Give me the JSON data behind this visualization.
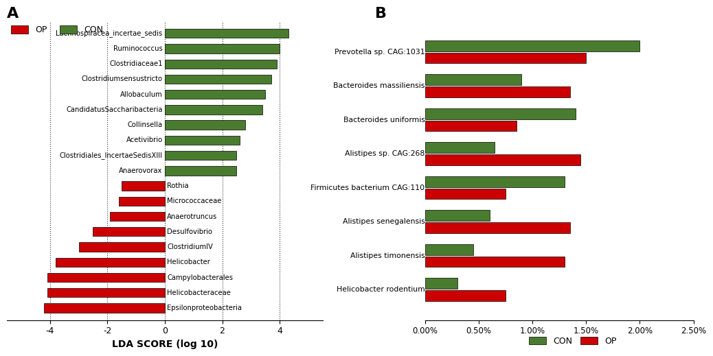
{
  "panel_A": {
    "xlabel": "LDA SCORE (log 10)",
    "xlim": [
      -5.5,
      5.5
    ],
    "xticks": [
      -4,
      -2,
      0,
      2,
      4
    ],
    "green_color": "#4a7c2f",
    "red_color": "#cc0000",
    "bar_height": 0.6,
    "categories": [
      "Lachnospiracea_incertae_sedis",
      "Ruminococcus",
      "Clostridiaceae1",
      "Clostridiumsensustricto",
      "Allobaculum",
      "CandidatusSaccharibacteria",
      "Collinsella",
      "Acetivibrio",
      "Clostridiales_IncertaeSedisXIII",
      "Anaerovorax",
      "Rothia",
      "Micrococcaceae",
      "Anaerotruncus",
      "Desulfovibrio",
      "ClostridiumIV",
      "Helicobacter",
      "Campylobacterales",
      "Helicobacteraceae",
      "Epsilonproteobacteria"
    ],
    "values": [
      4.3,
      4.0,
      3.9,
      3.7,
      3.5,
      3.4,
      2.8,
      2.6,
      2.5,
      2.5,
      -1.5,
      -1.6,
      -1.9,
      -2.5,
      -3.0,
      -3.8,
      -4.1,
      -4.1,
      -4.2
    ],
    "colors": [
      "#4a7c2f",
      "#4a7c2f",
      "#4a7c2f",
      "#4a7c2f",
      "#4a7c2f",
      "#4a7c2f",
      "#4a7c2f",
      "#4a7c2f",
      "#4a7c2f",
      "#4a7c2f",
      "#cc0000",
      "#cc0000",
      "#cc0000",
      "#cc0000",
      "#cc0000",
      "#cc0000",
      "#cc0000",
      "#cc0000",
      "#cc0000"
    ],
    "vlines": [
      -4,
      -2,
      0,
      2,
      4
    ]
  },
  "panel_B": {
    "xlim": [
      0,
      0.025
    ],
    "xtick_vals": [
      0.0,
      0.005,
      0.01,
      0.015,
      0.02,
      0.025
    ],
    "xtick_labels": [
      "0.00%",
      "0.50%",
      "1.00%",
      "1.50%",
      "2.00%",
      "2.50%"
    ],
    "green_color": "#4a7c2f",
    "red_color": "#cc0000",
    "bar_height": 0.32,
    "categories": [
      "Prevotella sp. CAG:1031",
      "Bacteroides massiliensis",
      "Bacteroides uniformis",
      "Alistipes sp. CAG:268",
      "Firmicutes bacterium CAG:110",
      "Alistipes senegalensis",
      "Alistipes timonensis",
      "Helicobacter rodentium"
    ],
    "con_values": [
      0.02,
      0.009,
      0.014,
      0.0065,
      0.013,
      0.006,
      0.0045,
      0.003
    ],
    "op_values": [
      0.015,
      0.0135,
      0.0085,
      0.0145,
      0.0075,
      0.0135,
      0.013,
      0.0075
    ]
  }
}
